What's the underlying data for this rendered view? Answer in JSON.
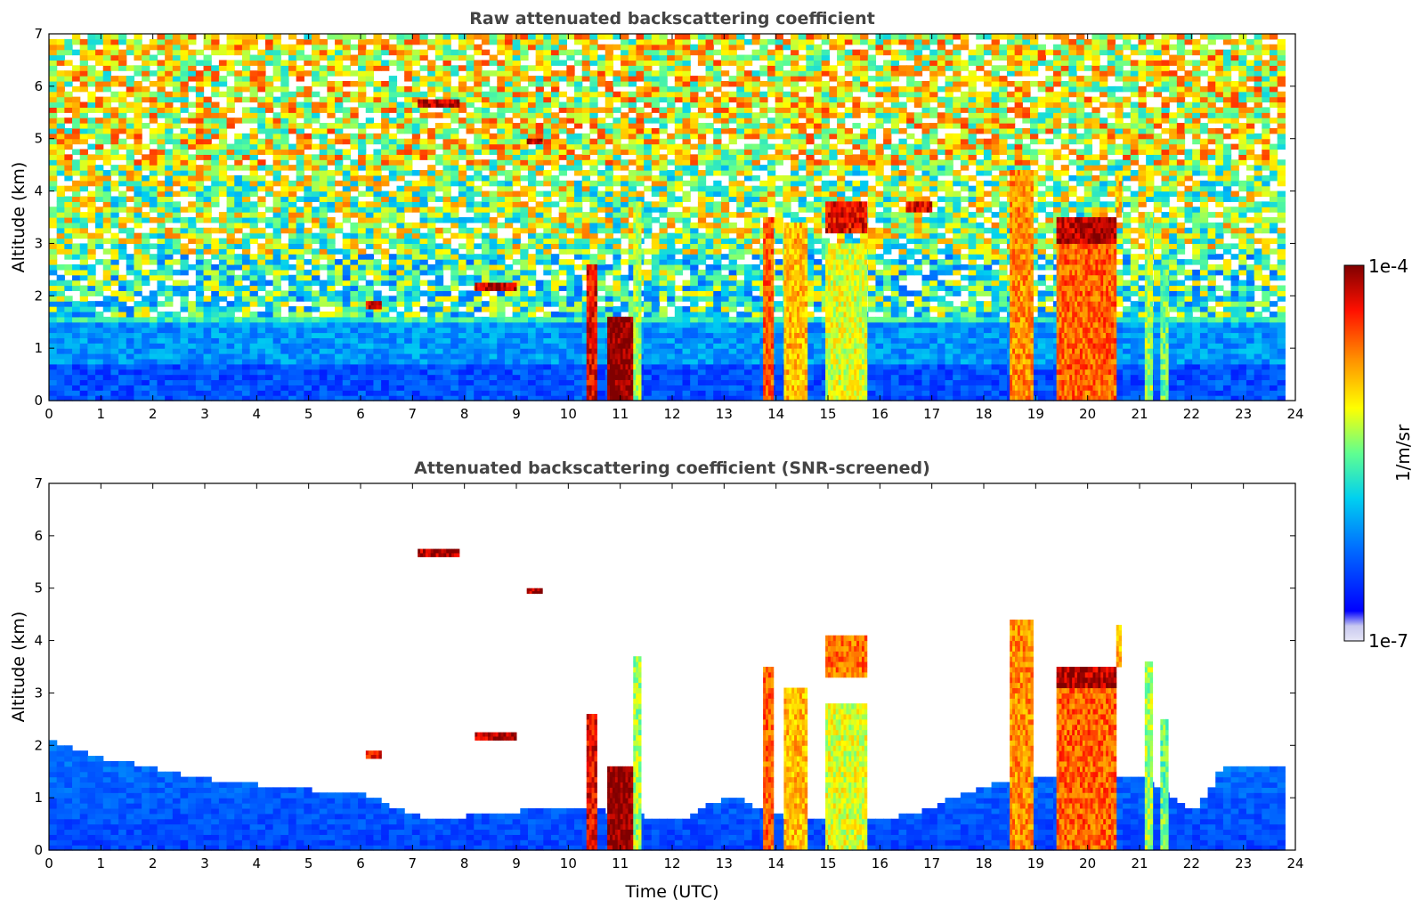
{
  "chart_data": [
    {
      "type": "heatmap",
      "title": "Raw attenuated backscattering coefficient",
      "xlabel": "",
      "ylabel": "Altitude (km)",
      "xlim": [
        0,
        24
      ],
      "ylim": [
        0,
        7
      ],
      "xticks": [
        "0",
        "1",
        "2",
        "3",
        "4",
        "5",
        "6",
        "7",
        "8",
        "9",
        "10",
        "11",
        "12",
        "13",
        "14",
        "15",
        "16",
        "17",
        "18",
        "19",
        "20",
        "21",
        "22",
        "23",
        "24"
      ],
      "yticks": [
        "0",
        "1",
        "2",
        "3",
        "4",
        "5",
        "6",
        "7"
      ],
      "data_end_time": 23.8,
      "screened": false,
      "background_layer": [
        {
          "alt": [
            0,
            0.7
          ],
          "value": 0.2
        },
        {
          "alt": [
            0.7,
            1.5
          ],
          "value": 0.3
        },
        {
          "alt": [
            1.5,
            2.8
          ],
          "value": 0.45
        },
        {
          "alt": [
            2.8,
            4.5
          ],
          "value": 0.55
        },
        {
          "alt": [
            4.5,
            7.0
          ],
          "value": 0.62
        }
      ],
      "features": [
        {
          "t": [
            10.35,
            10.55
          ],
          "alt": [
            0,
            2.6
          ],
          "value": 0.9
        },
        {
          "t": [
            10.75,
            11.25
          ],
          "alt": [
            0,
            1.6
          ],
          "value": 1.0
        },
        {
          "t": [
            11.25,
            11.4
          ],
          "alt": [
            0,
            3.8
          ],
          "value": 0.55
        },
        {
          "t": [
            13.75,
            13.95
          ],
          "alt": [
            0,
            3.5
          ],
          "value": 0.8
        },
        {
          "t": [
            14.15,
            14.6
          ],
          "alt": [
            0,
            3.4
          ],
          "value": 0.7
        },
        {
          "t": [
            14.95,
            15.75
          ],
          "alt": [
            0,
            3.0
          ],
          "value": 0.6
        },
        {
          "t": [
            14.95,
            15.75
          ],
          "alt": [
            3.2,
            3.8
          ],
          "value": 0.9
        },
        {
          "t": [
            18.5,
            18.95
          ],
          "alt": [
            0,
            4.4
          ],
          "value": 0.75
        },
        {
          "t": [
            19.4,
            20.55
          ],
          "alt": [
            0,
            3.3
          ],
          "value": 0.8
        },
        {
          "t": [
            19.4,
            20.55
          ],
          "alt": [
            3.0,
            3.5
          ],
          "value": 0.95
        },
        {
          "t": [
            20.55,
            20.65
          ],
          "alt": [
            3.5,
            4.3
          ],
          "value": 0.7
        },
        {
          "t": [
            21.1,
            21.25
          ],
          "alt": [
            0,
            3.6
          ],
          "value": 0.55
        },
        {
          "t": [
            21.4,
            21.55
          ],
          "alt": [
            0,
            2.5
          ],
          "value": 0.5
        },
        {
          "t": [
            7.1,
            7.9
          ],
          "alt": [
            5.6,
            5.75
          ],
          "value": 0.95
        },
        {
          "t": [
            9.2,
            9.5
          ],
          "alt": [
            4.9,
            5.0
          ],
          "value": 0.95
        },
        {
          "t": [
            8.2,
            9.0
          ],
          "alt": [
            2.1,
            2.25
          ],
          "value": 0.95
        },
        {
          "t": [
            6.1,
            6.4
          ],
          "alt": [
            1.75,
            1.9
          ],
          "value": 0.9
        },
        {
          "t": [
            16.5,
            17.0
          ],
          "alt": [
            3.6,
            3.8
          ],
          "value": 0.9
        }
      ]
    },
    {
      "type": "heatmap",
      "title": "Attenuated backscattering coefficient (SNR-screened)",
      "xlabel": "Time (UTC)",
      "ylabel": "Altitude (km)",
      "xlim": [
        0,
        24
      ],
      "ylim": [
        0,
        7
      ],
      "xticks": [
        "0",
        "1",
        "2",
        "3",
        "4",
        "5",
        "6",
        "7",
        "8",
        "9",
        "10",
        "11",
        "12",
        "13",
        "14",
        "15",
        "16",
        "17",
        "18",
        "19",
        "20",
        "21",
        "22",
        "23",
        "24"
      ],
      "yticks": [
        "0",
        "1",
        "2",
        "3",
        "4",
        "5",
        "6",
        "7"
      ],
      "data_end_time": 23.8,
      "screened": true,
      "boundary_layer_top_km": [
        {
          "t": 0,
          "alt": 2.0
        },
        {
          "t": 1,
          "alt": 1.7
        },
        {
          "t": 2,
          "alt": 1.5
        },
        {
          "t": 3,
          "alt": 1.3
        },
        {
          "t": 4,
          "alt": 1.2
        },
        {
          "t": 5,
          "alt": 1.1
        },
        {
          "t": 6,
          "alt": 1.0
        },
        {
          "t": 7,
          "alt": 0.6
        },
        {
          "t": 8,
          "alt": 0.6
        },
        {
          "t": 9,
          "alt": 0.7
        },
        {
          "t": 10,
          "alt": 0.8
        },
        {
          "t": 12,
          "alt": 0.5
        },
        {
          "t": 13,
          "alt": 1.0
        },
        {
          "t": 14,
          "alt": 0.6
        },
        {
          "t": 16,
          "alt": 0.5
        },
        {
          "t": 17,
          "alt": 0.8
        },
        {
          "t": 18,
          "alt": 1.2
        },
        {
          "t": 19,
          "alt": 1.4
        },
        {
          "t": 21,
          "alt": 1.3
        },
        {
          "t": 22,
          "alt": 0.7
        },
        {
          "t": 22.5,
          "alt": 1.5
        },
        {
          "t": 23.8,
          "alt": 1.6
        }
      ],
      "features": [
        {
          "t": [
            10.35,
            10.55
          ],
          "alt": [
            0,
            2.6
          ],
          "value": 0.9
        },
        {
          "t": [
            10.75,
            11.25
          ],
          "alt": [
            0,
            1.6
          ],
          "value": 1.0
        },
        {
          "t": [
            11.25,
            11.4
          ],
          "alt": [
            0,
            3.7
          ],
          "value": 0.55
        },
        {
          "t": [
            13.75,
            13.95
          ],
          "alt": [
            0,
            3.5
          ],
          "value": 0.8
        },
        {
          "t": [
            14.15,
            14.6
          ],
          "alt": [
            0,
            3.1
          ],
          "value": 0.7
        },
        {
          "t": [
            14.95,
            15.75
          ],
          "alt": [
            0,
            2.8
          ],
          "value": 0.6
        },
        {
          "t": [
            14.95,
            15.75
          ],
          "alt": [
            3.3,
            4.1
          ],
          "value": 0.78
        },
        {
          "t": [
            18.5,
            18.95
          ],
          "alt": [
            0,
            4.4
          ],
          "value": 0.75
        },
        {
          "t": [
            19.4,
            20.55
          ],
          "alt": [
            0,
            3.3
          ],
          "value": 0.8
        },
        {
          "t": [
            19.4,
            20.55
          ],
          "alt": [
            3.1,
            3.5
          ],
          "value": 0.95
        },
        {
          "t": [
            20.55,
            20.65
          ],
          "alt": [
            3.5,
            4.3
          ],
          "value": 0.7
        },
        {
          "t": [
            21.1,
            21.25
          ],
          "alt": [
            0,
            3.6
          ],
          "value": 0.55
        },
        {
          "t": [
            21.4,
            21.55
          ],
          "alt": [
            0,
            2.5
          ],
          "value": 0.5
        },
        {
          "t": [
            7.1,
            7.9
          ],
          "alt": [
            5.6,
            5.75
          ],
          "value": 0.95
        },
        {
          "t": [
            9.2,
            9.5
          ],
          "alt": [
            4.9,
            5.0
          ],
          "value": 0.95
        },
        {
          "t": [
            8.2,
            9.0
          ],
          "alt": [
            2.1,
            2.25
          ],
          "value": 0.95
        },
        {
          "t": [
            6.1,
            6.4
          ],
          "alt": [
            1.75,
            1.9
          ],
          "value": 0.9
        }
      ]
    }
  ],
  "colorbar": {
    "label": "1/m/sr",
    "max_label": "1e-4",
    "min_label": "1e-7",
    "scale": "log",
    "colormap": "jet",
    "colors": [
      "#e6e6f6",
      "#0000ff",
      "#00a0ff",
      "#00e0e0",
      "#80ff80",
      "#ffff00",
      "#ff8000",
      "#ff0000",
      "#800000"
    ]
  }
}
